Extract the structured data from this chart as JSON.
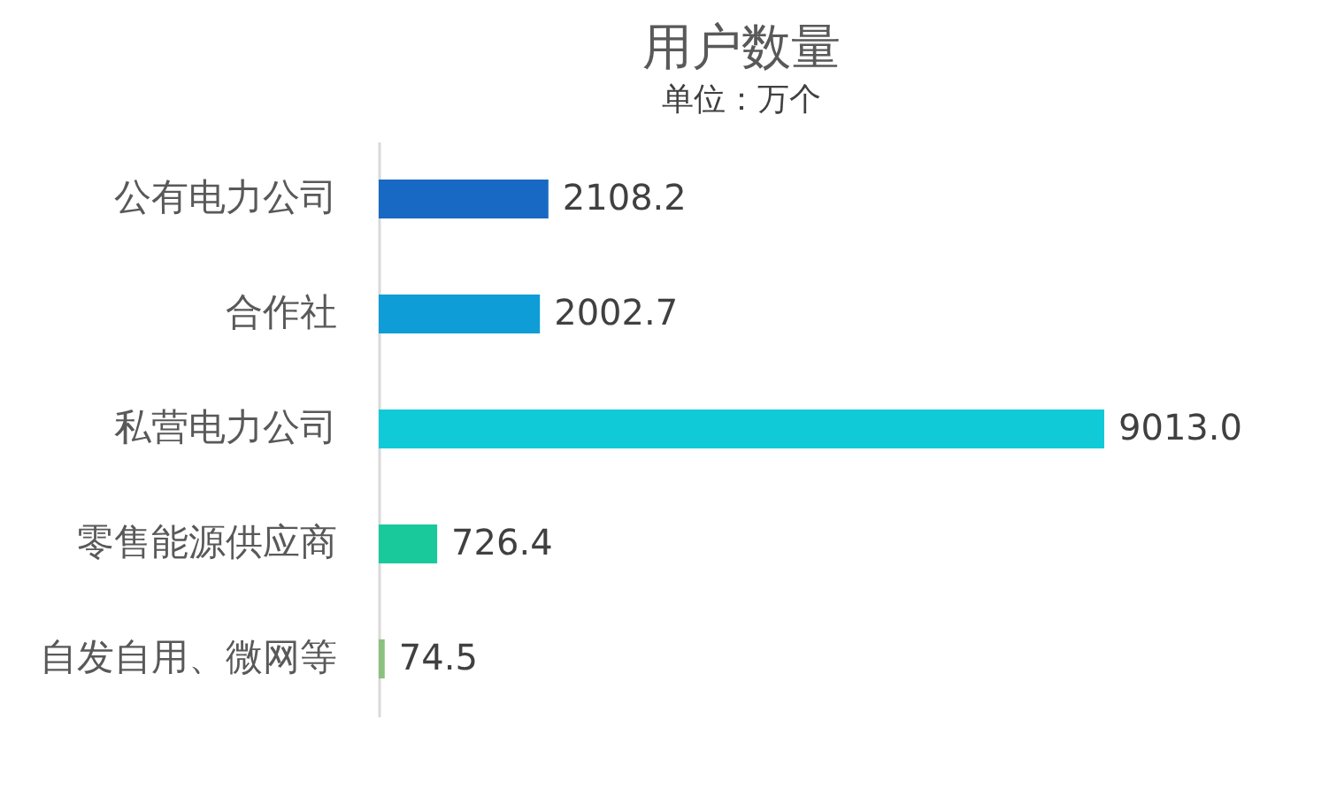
{
  "chart_data": {
    "type": "bar",
    "orientation": "horizontal",
    "title": "用户数量",
    "subtitle": "单位：万个",
    "categories": [
      "公有电力公司",
      "合作社",
      "私营电力公司",
      "零售能源供应商",
      "自发自用、微网等"
    ],
    "values": [
      2108.2,
      2002.7,
      9013.0,
      726.4,
      74.5
    ],
    "colors": [
      "#1769c4",
      "#0e9dd6",
      "#10cad8",
      "#19c99b",
      "#8cc07e"
    ],
    "value_labels": [
      "2108.2",
      "2002.7",
      "9013.0",
      "726.4",
      "74.5"
    ],
    "tick_labels": "y",
    "grid": false,
    "legend": false
  }
}
